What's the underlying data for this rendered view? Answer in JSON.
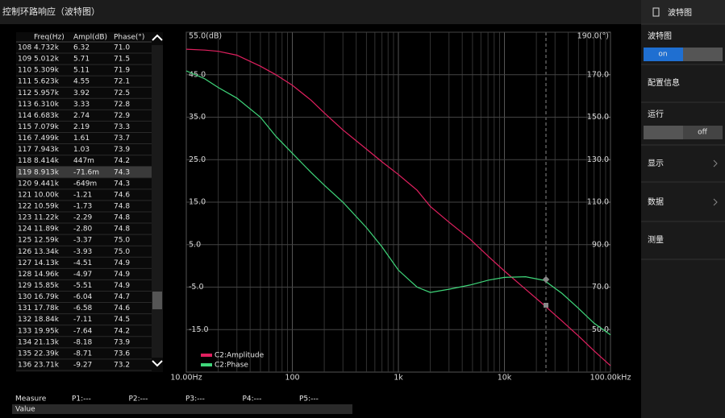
{
  "header": {
    "title": "控制环路响应（波特图）"
  },
  "table": {
    "columns": [
      "Freq(Hz)",
      "Ampl(dB)",
      "Phase(°)"
    ],
    "rows": [
      [
        "108",
        "4.732k",
        "6.32",
        "71.0"
      ],
      [
        "109",
        "5.012k",
        "5.71",
        "71.5"
      ],
      [
        "110",
        "5.309k",
        "5.11",
        "71.9"
      ],
      [
        "111",
        "5.623k",
        "4.55",
        "72.1"
      ],
      [
        "112",
        "5.957k",
        "3.92",
        "72.5"
      ],
      [
        "113",
        "6.310k",
        "3.33",
        "72.8"
      ],
      [
        "114",
        "6.683k",
        "2.74",
        "72.9"
      ],
      [
        "115",
        "7.079k",
        "2.19",
        "73.3"
      ],
      [
        "116",
        "7.499k",
        "1.61",
        "73.7"
      ],
      [
        "117",
        "7.943k",
        "1.03",
        "73.9"
      ],
      [
        "118",
        "8.414k",
        "447m",
        "74.2"
      ],
      [
        "119",
        "8.913k",
        "-71.6m",
        "74.3"
      ],
      [
        "120",
        "9.441k",
        "-649m",
        "74.3"
      ],
      [
        "121",
        "10.00k",
        "-1.21",
        "74.6"
      ],
      [
        "122",
        "10.59k",
        "-1.73",
        "74.8"
      ],
      [
        "123",
        "11.22k",
        "-2.29",
        "74.8"
      ],
      [
        "124",
        "11.89k",
        "-2.80",
        "74.8"
      ],
      [
        "125",
        "12.59k",
        "-3.37",
        "75.0"
      ],
      [
        "126",
        "13.34k",
        "-3.93",
        "75.0"
      ],
      [
        "127",
        "14.13k",
        "-4.51",
        "74.9"
      ],
      [
        "128",
        "14.96k",
        "-4.97",
        "74.9"
      ],
      [
        "129",
        "15.85k",
        "-5.51",
        "74.9"
      ],
      [
        "130",
        "16.79k",
        "-6.04",
        "74.7"
      ],
      [
        "131",
        "17.78k",
        "-6.58",
        "74.6"
      ],
      [
        "132",
        "18.84k",
        "-7.11",
        "74.5"
      ],
      [
        "133",
        "19.95k",
        "-7.64",
        "74.2"
      ],
      [
        "134",
        "21.13k",
        "-8.18",
        "73.9"
      ],
      [
        "135",
        "22.39k",
        "-8.71",
        "73.6"
      ],
      [
        "136",
        "23.71k",
        "-9.27",
        "73.2"
      ]
    ]
  },
  "chart_data": {
    "type": "line",
    "x_log": true,
    "xlim": [
      10,
      100000
    ],
    "xticks": [
      {
        "value": 10,
        "label": "10.00Hz"
      },
      100,
      {
        "value": 1000,
        "label": "1k"
      },
      {
        "value": 10000,
        "label": "10k"
      },
      {
        "value": 100000,
        "label": "100.00kHz"
      }
    ],
    "ylim": [
      -25,
      55
    ],
    "yticks": [
      {
        "value": 55,
        "label": "55.0(dB)"
      },
      {
        "value": 45,
        "label": "45.0"
      },
      {
        "value": 35,
        "label": "35.0"
      },
      {
        "value": 25,
        "label": "25.0"
      },
      {
        "value": 15,
        "label": "15.0"
      },
      {
        "value": 5,
        "label": "5.0"
      },
      {
        "value": -5,
        "label": "-5.0"
      },
      {
        "value": -15,
        "label": "-15.0"
      }
    ],
    "y2lim": [
      30,
      190
    ],
    "y2ticks": [
      {
        "value": 190,
        "label": "190.0(°)"
      },
      {
        "value": 170,
        "label": "170.0"
      },
      {
        "value": 150,
        "label": "150.0"
      },
      {
        "value": 130,
        "label": "130.0"
      },
      {
        "value": 110,
        "label": "110.0"
      },
      {
        "value": 90,
        "label": "90.0"
      },
      {
        "value": 70,
        "label": "70.0"
      },
      {
        "value": 50,
        "label": "50.0"
      }
    ],
    "grid": true,
    "x": [
      10,
      15,
      20,
      30,
      50,
      70,
      100,
      150,
      200,
      300,
      500,
      700,
      1000,
      1500,
      2000,
      3000,
      4732,
      7079,
      10000,
      15850,
      23710,
      35000,
      50000,
      70000,
      100000
    ],
    "series": [
      {
        "name": "C2:Amplitude",
        "color": "#e0205f",
        "values": [
          51.0,
          50.8,
          50.5,
          49.6,
          47.0,
          45.0,
          42.5,
          39.0,
          36.0,
          32.0,
          27.5,
          24.5,
          21.5,
          17.8,
          14.0,
          10.3,
          6.32,
          2.19,
          -1.21,
          -5.51,
          -9.27,
          -13.0,
          -16.5,
          -20.0,
          -23.5
        ]
      },
      {
        "name": "C2:Phase",
        "color": "#3fd67a",
        "axis": "y2",
        "values": [
          171.8,
          168,
          164,
          159,
          150,
          141,
          133,
          124,
          118,
          110,
          98,
          89,
          78,
          70,
          67.5,
          69,
          71.0,
          73.3,
          74.6,
          74.9,
          73.2,
          67,
          60,
          53,
          47.5
        ]
      }
    ]
  },
  "sidebar": {
    "header": "波特图",
    "items": [
      {
        "label": "波特图",
        "toggle": "on"
      },
      {
        "label": "配置信息"
      },
      {
        "label": "运行",
        "toggle": "off"
      },
      {
        "label": "显示"
      },
      {
        "label": "数据"
      },
      {
        "label": "测量"
      }
    ]
  },
  "measure": {
    "label": "Measure",
    "points": [
      "P1:---",
      "P2:---",
      "P3:---",
      "P4:---",
      "P5:---"
    ],
    "value_label": "Value"
  }
}
